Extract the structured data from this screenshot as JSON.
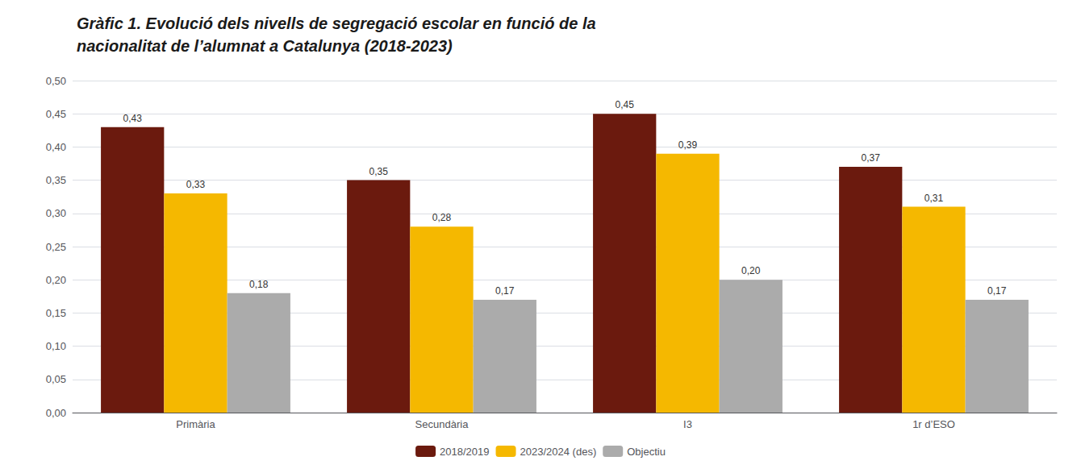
{
  "chart_data": {
    "type": "bar",
    "title": "Gràfic 1. Evolució dels nivells de segregació escolar en funció de la\nnacionalitat de l’alumnat a Catalunya (2018-2023)",
    "categories": [
      "Primària",
      "Secundària",
      "I3",
      "1r d’ESO"
    ],
    "series": [
      {
        "name": "2018/2019",
        "color": "#6B1A0E",
        "values": [
          0.43,
          0.35,
          0.45,
          0.37
        ],
        "value_labels": [
          "0,43",
          "0,35",
          "0,45",
          "0,37"
        ]
      },
      {
        "name": "2023/2024 (des)",
        "color": "#F5B800",
        "values": [
          0.33,
          0.28,
          0.39,
          0.31
        ],
        "value_labels": [
          "0,33",
          "0,28",
          "0,39",
          "0,31"
        ]
      },
      {
        "name": "Objectiu",
        "color": "#ABABAB",
        "values": [
          0.18,
          0.17,
          0.2,
          0.17
        ],
        "value_labels": [
          "0,18",
          "0,17",
          "0,20",
          "0,17"
        ]
      }
    ],
    "ylim": [
      0,
      0.5
    ],
    "yticks": [
      {
        "value": 0.0,
        "label": "0,00"
      },
      {
        "value": 0.05,
        "label": "0,05"
      },
      {
        "value": 0.1,
        "label": "0,10"
      },
      {
        "value": 0.15,
        "label": "0,15"
      },
      {
        "value": 0.2,
        "label": "0,20"
      },
      {
        "value": 0.25,
        "label": "0,25"
      },
      {
        "value": 0.3,
        "label": "0,30"
      },
      {
        "value": 0.35,
        "label": "0,35"
      },
      {
        "value": 0.4,
        "label": "0,40"
      },
      {
        "value": 0.45,
        "label": "0,45"
      },
      {
        "value": 0.5,
        "label": "0,50"
      }
    ],
    "grid": true,
    "legend": "bottom",
    "data_labels": true
  }
}
